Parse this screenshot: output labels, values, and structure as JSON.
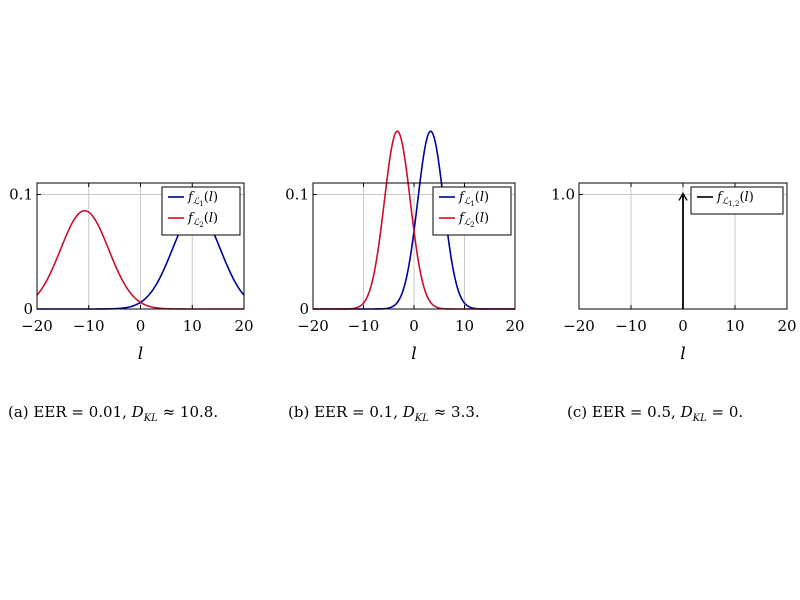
{
  "chart_data": [
    {
      "type": "line",
      "panel": "a",
      "xlabel": "l",
      "xlim": [
        -20,
        20
      ],
      "ylim": [
        0,
        0.11
      ],
      "x_ticks": [
        -20,
        -10,
        0,
        10,
        20
      ],
      "x_tick_labels": [
        "−20",
        "−10",
        "0",
        "10",
        "20"
      ],
      "y_ticks": [
        0,
        0.1
      ],
      "y_tick_labels": [
        "0",
        "0.1"
      ],
      "grid": true,
      "legend_position": "top-right",
      "series": [
        {
          "name": "f_{L1}(l)",
          "color": "#00009c",
          "curve": "gaussian",
          "mean": 10.8,
          "sd": 4.65
        },
        {
          "name": "f_{L2}(l)",
          "color": "#c8102e",
          "curve": "gaussian",
          "mean": -10.8,
          "sd": 4.65
        }
      ]
    },
    {
      "type": "line",
      "panel": "b",
      "xlabel": "l",
      "xlim": [
        -20,
        20
      ],
      "ylim": [
        0,
        0.11
      ],
      "x_ticks": [
        -20,
        -10,
        0,
        10,
        20
      ],
      "x_tick_labels": [
        "−20",
        "−10",
        "0",
        "10",
        "20"
      ],
      "y_ticks": [
        0,
        0.1
      ],
      "y_tick_labels": [
        "0",
        "0.1"
      ],
      "grid": true,
      "legend_position": "top-right",
      "series": [
        {
          "name": "f_{L1}(l)",
          "color": "#00009c",
          "curve": "gaussian",
          "mean": 3.3,
          "sd": 2.57
        },
        {
          "name": "f_{L2}(l)",
          "color": "#c8102e",
          "curve": "gaussian",
          "mean": -3.3,
          "sd": 2.57
        }
      ]
    },
    {
      "type": "line",
      "panel": "c",
      "xlabel": "l",
      "xlim": [
        -20,
        20
      ],
      "ylim": [
        0,
        1.1
      ],
      "x_ticks": [
        -20,
        -10,
        0,
        10,
        20
      ],
      "x_tick_labels": [
        "−20",
        "−10",
        "0",
        "10",
        "20"
      ],
      "y_ticks": [
        1.0
      ],
      "y_tick_labels": [
        "1.0"
      ],
      "grid": true,
      "legend_position": "top-right",
      "series": [
        {
          "name": "f_{L1,2}(l)",
          "color": "#000000",
          "curve": "impulse",
          "at": 0,
          "height": 1.0
        }
      ]
    }
  ],
  "captions": {
    "a": {
      "prefix": "(a) EER = 0.01, ",
      "value": " ≈ 10.8."
    },
    "b": {
      "prefix": "(b) EER = 0.1, ",
      "value": " ≈ 3.3."
    },
    "c": {
      "prefix": "(c) EER = 0.5, ",
      "value": " = 0."
    }
  }
}
